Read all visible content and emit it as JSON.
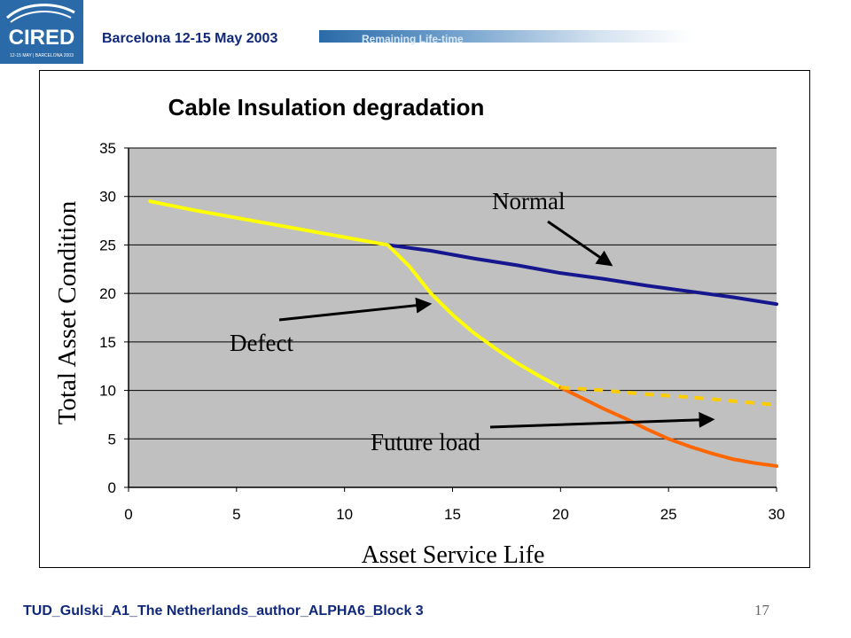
{
  "header": {
    "logo_text": "CIRED",
    "logo_subtext": "12-15 MAY | BARCELONA 2003",
    "event": "Barcelona  12-15 May 2003",
    "topic": "Remaining Life-time"
  },
  "footer": {
    "left_text": "TUD_Gulski_A1_The Netherlands_author_ALPHA6_Block  3",
    "page_number": "17"
  },
  "colors": {
    "plot_background": "#c0c0c0",
    "normal": "#16168e",
    "defect": "#ffff00",
    "future_load": "#ff6600",
    "extrapolation": "#ffcc00"
  },
  "chart_data": {
    "type": "line",
    "title": "Cable Insulation degradation",
    "xlabel": "Asset Service Life",
    "ylabel": "Total Asset Condition",
    "xlim": [
      0,
      30
    ],
    "ylim": [
      0,
      35
    ],
    "x_ticks": [
      "0",
      "5",
      "10",
      "15",
      "20",
      "25",
      "30"
    ],
    "y_ticks": [
      "0",
      "5",
      "10",
      "15",
      "20",
      "25",
      "30",
      "35"
    ],
    "grid": "horizontal",
    "series": [
      {
        "name": "Normal",
        "color": "#16168e",
        "dashed": false,
        "points": [
          [
            12,
            25
          ],
          [
            14,
            24.4
          ],
          [
            16,
            23.6
          ],
          [
            18,
            22.9
          ],
          [
            20,
            22.1
          ],
          [
            22,
            21.5
          ],
          [
            24,
            20.8
          ],
          [
            26,
            20.2
          ],
          [
            28,
            19.6
          ],
          [
            30,
            18.9
          ]
        ]
      },
      {
        "name": "Defect",
        "color": "#ffff00",
        "dashed": false,
        "points": [
          [
            1,
            29.5
          ],
          [
            3,
            28.6
          ],
          [
            5,
            27.8
          ],
          [
            7,
            27
          ],
          [
            9,
            26.2
          ],
          [
            11,
            25.4
          ],
          [
            12,
            25
          ],
          [
            13,
            22.8
          ],
          [
            14,
            20
          ],
          [
            15,
            17.8
          ],
          [
            16,
            15.9
          ],
          [
            17,
            14.3
          ],
          [
            18,
            12.8
          ],
          [
            19,
            11.5
          ],
          [
            20,
            10.3
          ]
        ]
      },
      {
        "name": "Future load",
        "color": "#ff6600",
        "dashed": false,
        "points": [
          [
            20,
            10.3
          ],
          [
            21,
            9.2
          ],
          [
            22,
            8.1
          ],
          [
            23,
            7.1
          ],
          [
            24,
            6
          ],
          [
            25,
            5
          ],
          [
            26,
            4.2
          ],
          [
            27,
            3.5
          ],
          [
            28,
            2.9
          ],
          [
            29,
            2.5
          ],
          [
            30,
            2.2
          ]
        ]
      },
      {
        "name": "",
        "color": "#ffcc00",
        "dashed": true,
        "points": [
          [
            20,
            10.3
          ],
          [
            22,
            10
          ],
          [
            24,
            9.6
          ],
          [
            26,
            9.3
          ],
          [
            28,
            8.9
          ],
          [
            30,
            8.5
          ]
        ]
      }
    ],
    "annotations": [
      {
        "text": "Normal",
        "arrow_to": [
          22.3,
          23
        ]
      },
      {
        "text": "Defect",
        "arrow_to": [
          13.9,
          18.9
        ]
      },
      {
        "text": "Future load",
        "arrow_to": [
          27,
          7
        ]
      }
    ]
  }
}
